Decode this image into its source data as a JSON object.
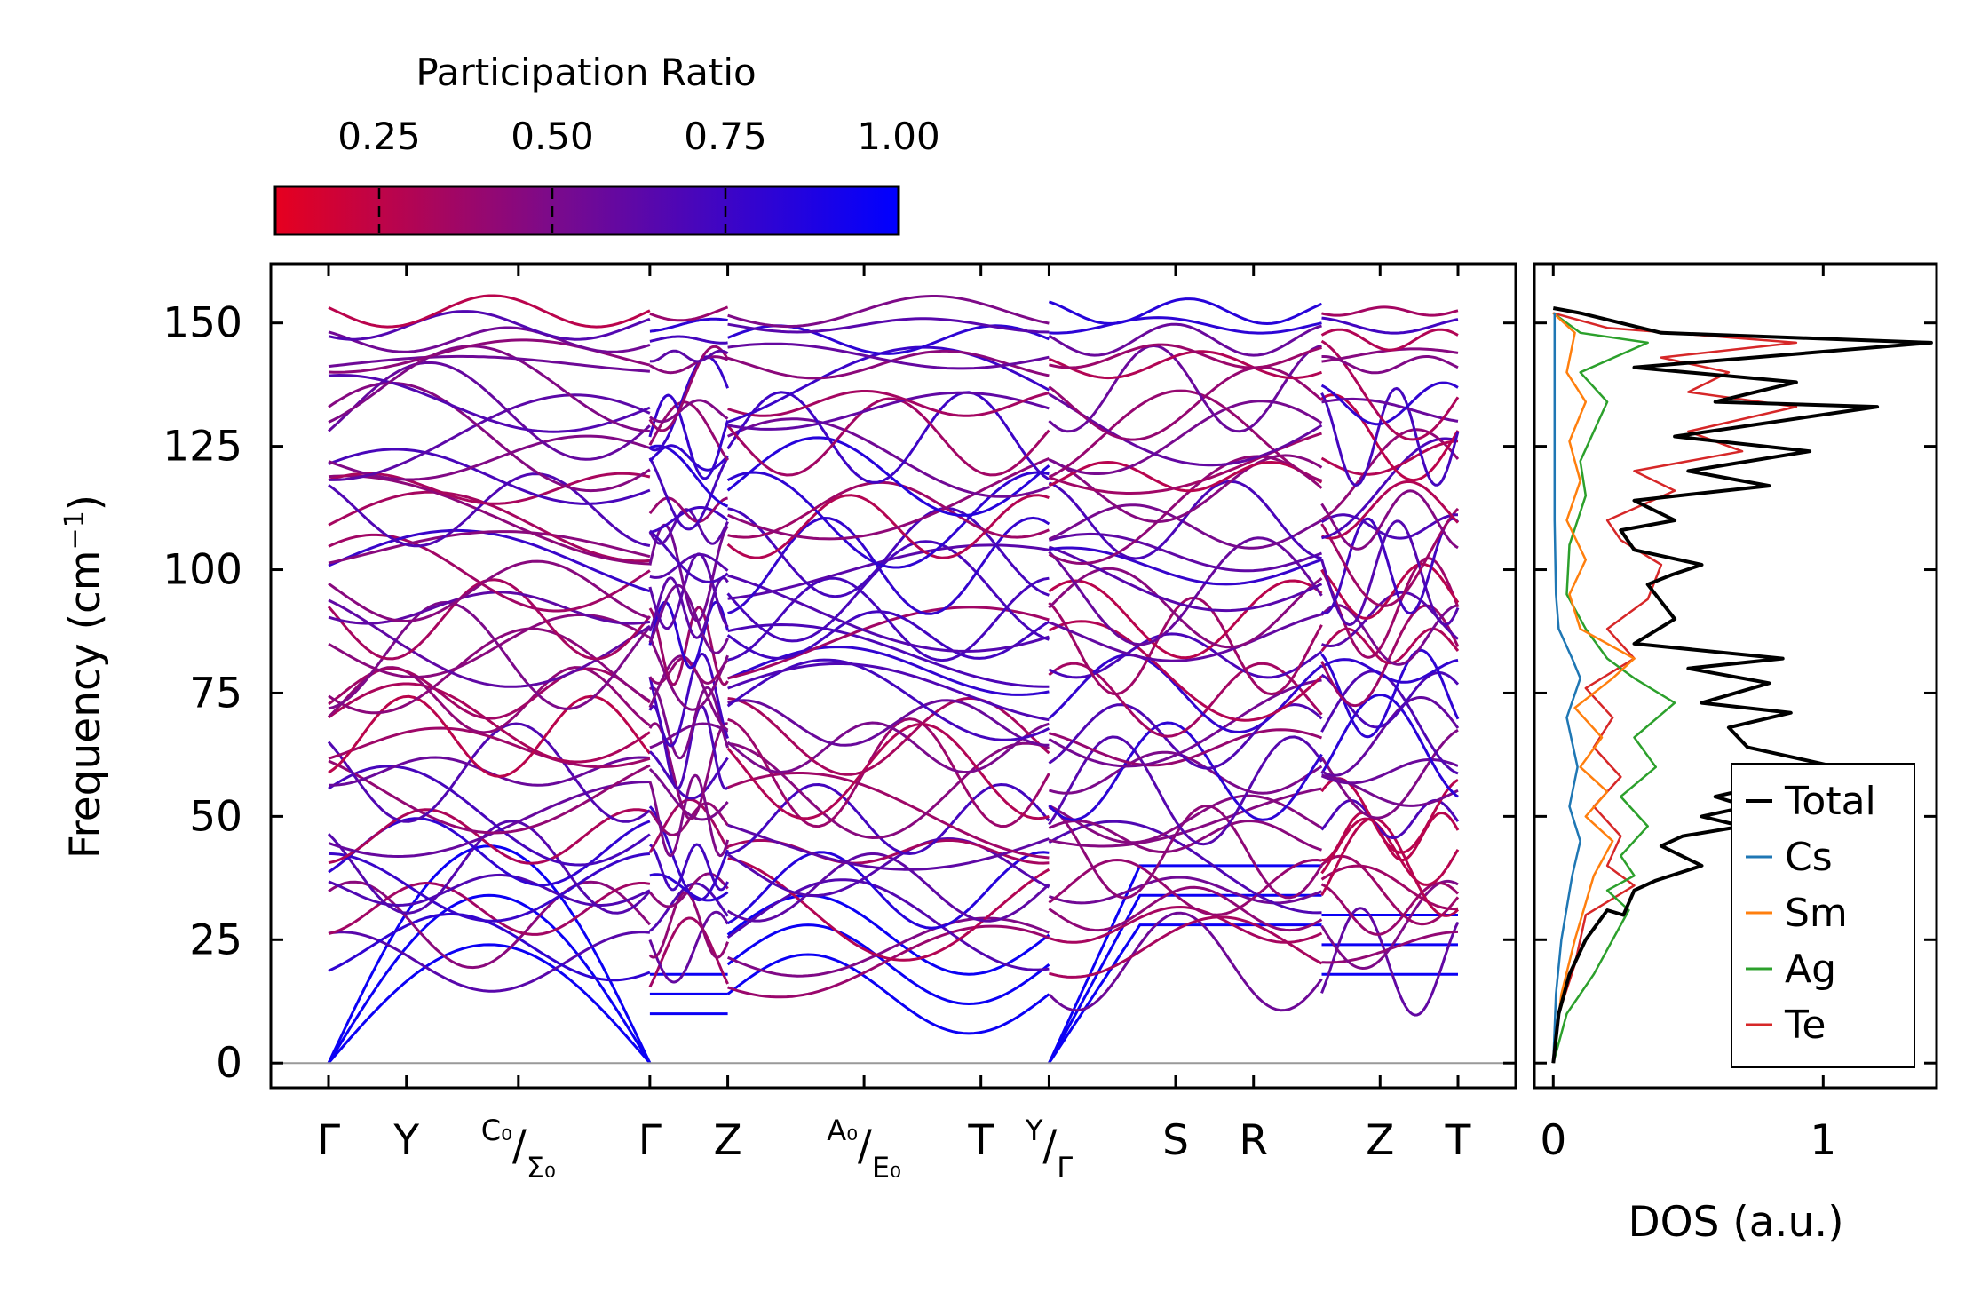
{
  "chart_data": [
    {
      "type": "line",
      "name": "phonon-band-structure",
      "ylabel": "Frequency (cm",
      "ylabel_sup": "−1",
      "ylabel_end": ")",
      "ylim": [
        -5,
        162
      ],
      "yticks": [
        "0",
        "25",
        "50",
        "75",
        "100",
        "125",
        "150"
      ],
      "ytick_values": [
        0,
        25,
        50,
        75,
        100,
        125,
        150
      ],
      "x_range": [
        0,
        11.6
      ],
      "segments": [
        [
          0,
          3.3
        ],
        [
          3.3,
          4.1
        ],
        [
          4.1,
          7.4
        ],
        [
          7.4,
          10.2
        ],
        [
          10.2,
          11.6
        ]
      ],
      "kpoints": [
        {
          "pos": 0,
          "label": "Γ"
        },
        {
          "pos": 0.8,
          "label": "Y"
        },
        {
          "pos": 1.95,
          "label": "C₀/Σ₀",
          "split": [
            "C₀",
            "Σ₀"
          ]
        },
        {
          "pos": 3.3,
          "label": "Γ"
        },
        {
          "pos": 4.1,
          "label": "Z"
        },
        {
          "pos": 5.5,
          "label": "A₀/E₀",
          "split": [
            "A₀",
            "E₀"
          ]
        },
        {
          "pos": 6.7,
          "label": "T"
        },
        {
          "pos": 7.4,
          "label": "Y/Γ",
          "split": [
            "Y",
            "Γ"
          ]
        },
        {
          "pos": 8.7,
          "label": "S"
        },
        {
          "pos": 9.5,
          "label": "R"
        },
        {
          "pos": 10.8,
          "label": "Z"
        },
        {
          "pos": 11.6,
          "label": "T"
        }
      ],
      "band_count": 48,
      "color_scale": {
        "low": "#e6001f",
        "mid": "#7a0a8c",
        "high": "#0000ff"
      }
    },
    {
      "type": "line",
      "name": "density-of-states",
      "xlabel": "DOS (a.u.)",
      "xticks": [
        "0",
        "1"
      ],
      "xtick_values": [
        0,
        1
      ],
      "xlim": [
        -0.07,
        1.42
      ],
      "ylim": [
        -5,
        162
      ],
      "series": [
        {
          "name": "Total",
          "color": "#000000",
          "points": [
            [
              0,
              0
            ],
            [
              0.02,
              10
            ],
            [
              0.06,
              18
            ],
            [
              0.12,
              25
            ],
            [
              0.2,
              31
            ],
            [
              0.26,
              30
            ],
            [
              0.3,
              35
            ],
            [
              0.38,
              37
            ],
            [
              0.55,
              40
            ],
            [
              0.4,
              44
            ],
            [
              0.48,
              46
            ],
            [
              0.7,
              48
            ],
            [
              0.55,
              50
            ],
            [
              0.72,
              52
            ],
            [
              0.6,
              54
            ],
            [
              0.92,
              58
            ],
            [
              0.7,
              60
            ],
            [
              1.05,
              60
            ],
            [
              0.72,
              64
            ],
            [
              0.65,
              68
            ],
            [
              0.88,
              71
            ],
            [
              0.55,
              73
            ],
            [
              0.8,
              77
            ],
            [
              0.5,
              80
            ],
            [
              0.85,
              82
            ],
            [
              0.3,
              85
            ],
            [
              0.45,
              90
            ],
            [
              0.35,
              97
            ],
            [
              0.44,
              99
            ],
            [
              0.55,
              101
            ],
            [
              0.3,
              104
            ],
            [
              0.25,
              108
            ],
            [
              0.45,
              110
            ],
            [
              0.3,
              114
            ],
            [
              0.8,
              117
            ],
            [
              0.5,
              120
            ],
            [
              0.95,
              124
            ],
            [
              0.45,
              127
            ],
            [
              1.2,
              133
            ],
            [
              0.6,
              134
            ],
            [
              0.9,
              138
            ],
            [
              0.3,
              141
            ],
            [
              1.4,
              146
            ],
            [
              0.4,
              148
            ],
            [
              0.1,
              152
            ],
            [
              0,
              153
            ]
          ]
        },
        {
          "name": "Cs",
          "color": "#1f77b4",
          "points": [
            [
              0,
              0
            ],
            [
              0.01,
              14
            ],
            [
              0.03,
              25
            ],
            [
              0.07,
              38
            ],
            [
              0.1,
              45
            ],
            [
              0.06,
              52
            ],
            [
              0.09,
              60
            ],
            [
              0.05,
              70
            ],
            [
              0.1,
              78
            ],
            [
              0.07,
              82
            ],
            [
              0.02,
              88
            ],
            [
              0.01,
              95
            ],
            [
              0.005,
              110
            ],
            [
              0.005,
              152
            ]
          ]
        },
        {
          "name": "Sm",
          "color": "#ff7f0e",
          "points": [
            [
              0,
              0
            ],
            [
              0.03,
              14
            ],
            [
              0.08,
              25
            ],
            [
              0.15,
              38
            ],
            [
              0.22,
              45
            ],
            [
              0.12,
              50
            ],
            [
              0.2,
              55
            ],
            [
              0.1,
              60
            ],
            [
              0.18,
              66
            ],
            [
              0.08,
              72
            ],
            [
              0.22,
              78
            ],
            [
              0.3,
              82
            ],
            [
              0.1,
              88
            ],
            [
              0.06,
              95
            ],
            [
              0.12,
              102
            ],
            [
              0.05,
              110
            ],
            [
              0.1,
              118
            ],
            [
              0.06,
              126
            ],
            [
              0.12,
              134
            ],
            [
              0.05,
              140
            ],
            [
              0.08,
              148
            ],
            [
              0,
              152
            ]
          ]
        },
        {
          "name": "Ag",
          "color": "#2ca02c",
          "points": [
            [
              0,
              0
            ],
            [
              0.05,
              10
            ],
            [
              0.15,
              18
            ],
            [
              0.28,
              31
            ],
            [
              0.2,
              35
            ],
            [
              0.3,
              38
            ],
            [
              0.25,
              42
            ],
            [
              0.35,
              48
            ],
            [
              0.25,
              54
            ],
            [
              0.38,
              60
            ],
            [
              0.3,
              66
            ],
            [
              0.45,
              73
            ],
            [
              0.3,
              78
            ],
            [
              0.2,
              82
            ],
            [
              0.12,
              88
            ],
            [
              0.05,
              95
            ],
            [
              0.06,
              105
            ],
            [
              0.12,
              115
            ],
            [
              0.1,
              122
            ],
            [
              0.15,
              128
            ],
            [
              0.2,
              134
            ],
            [
              0.1,
              140
            ],
            [
              0.35,
              146
            ],
            [
              0.1,
              148
            ],
            [
              0,
              152
            ]
          ]
        },
        {
          "name": "Te",
          "color": "#d62728",
          "points": [
            [
              0,
              0
            ],
            [
              0.02,
              10
            ],
            [
              0.08,
              20
            ],
            [
              0.12,
              30
            ],
            [
              0.3,
              36
            ],
            [
              0.2,
              40
            ],
            [
              0.25,
              46
            ],
            [
              0.15,
              52
            ],
            [
              0.25,
              58
            ],
            [
              0.15,
              64
            ],
            [
              0.22,
              70
            ],
            [
              0.12,
              76
            ],
            [
              0.3,
              82
            ],
            [
              0.2,
              88
            ],
            [
              0.35,
              94
            ],
            [
              0.4,
              101
            ],
            [
              0.25,
              106
            ],
            [
              0.2,
              110
            ],
            [
              0.45,
              116
            ],
            [
              0.3,
              120
            ],
            [
              0.7,
              124
            ],
            [
              0.5,
              128
            ],
            [
              0.9,
              133
            ],
            [
              0.5,
              136
            ],
            [
              0.65,
              140
            ],
            [
              0.4,
              143
            ],
            [
              0.9,
              146
            ],
            [
              0.2,
              149
            ],
            [
              0,
              152
            ]
          ]
        }
      ],
      "legend": {
        "placement": "lower-right",
        "entries": [
          "Total",
          "Cs",
          "Sm",
          "Ag",
          "Te"
        ]
      }
    }
  ],
  "colorbar": {
    "title": "Participation Ratio",
    "ticks": [
      "0.25",
      "0.50",
      "0.75",
      "1.00"
    ],
    "tick_values": [
      0.25,
      0.5,
      0.75,
      1.0
    ],
    "range": [
      0.1,
      1.0
    ],
    "low_color": "#e6001f",
    "high_color": "#0000ff"
  }
}
